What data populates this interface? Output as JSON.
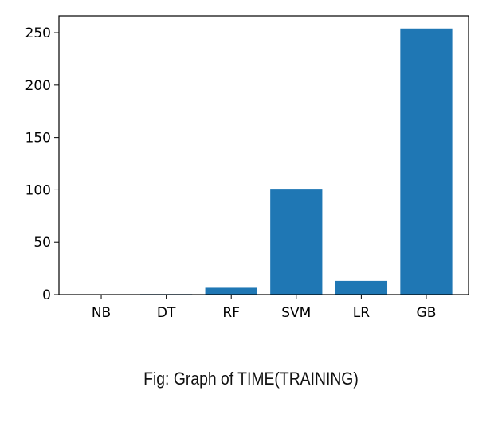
{
  "chart_data": {
    "type": "bar",
    "categories": [
      "NB",
      "DT",
      "RF",
      "SVM",
      "LR",
      "GB"
    ],
    "values": [
      0.3,
      0.5,
      6.5,
      101,
      13,
      254
    ],
    "title": "",
    "xlabel": "",
    "ylabel": "",
    "ylim": [
      0,
      266
    ],
    "yticks": [
      0,
      50,
      100,
      150,
      200,
      250
    ],
    "ytick_labels": [
      "0",
      "50",
      "100",
      "150",
      "200",
      "250"
    ],
    "bar_color": "#1f77b4",
    "grid": false,
    "legend": "none"
  },
  "caption": "Fig: Graph of TIME(TRAINING)"
}
